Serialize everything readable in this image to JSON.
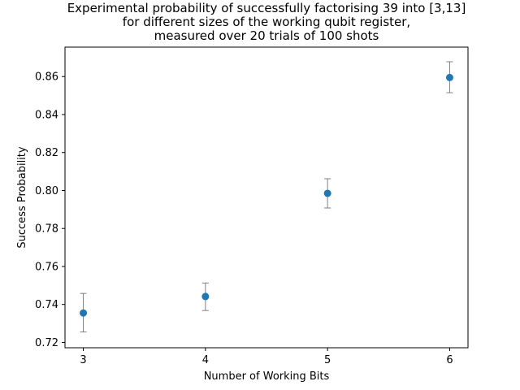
{
  "chart_data": {
    "type": "scatter",
    "title_lines": [
      "Experimental probability of successfully factorising 39 into [3,13]",
      "for different sizes of the working qubit register,",
      "measured over 20 trials of 100 shots"
    ],
    "xlabel": "Number of Working Bits",
    "ylabel": "Success Probability",
    "x": [
      3,
      4,
      5,
      6
    ],
    "y": [
      0.7355,
      0.7442,
      0.7985,
      0.8595
    ],
    "yerr_low": [
      0.7255,
      0.7368,
      0.7908,
      0.8515
    ],
    "yerr_high": [
      0.7458,
      0.7513,
      0.8062,
      0.8678
    ],
    "xlim": [
      2.85,
      6.15
    ],
    "ylim": [
      0.7172,
      0.8755
    ],
    "xticks": [
      "3",
      "4",
      "5",
      "6"
    ],
    "xtick_values": [
      3,
      4,
      5,
      6
    ],
    "yticks": [
      "0.72",
      "0.74",
      "0.76",
      "0.78",
      "0.80",
      "0.82",
      "0.84",
      "0.86"
    ],
    "ytick_values": [
      0.72,
      0.74,
      0.76,
      0.78,
      0.8,
      0.82,
      0.84,
      0.86
    ],
    "marker_color": "#1f77b4",
    "errorbar_color": "#808080",
    "grid": false,
    "legend": false
  }
}
